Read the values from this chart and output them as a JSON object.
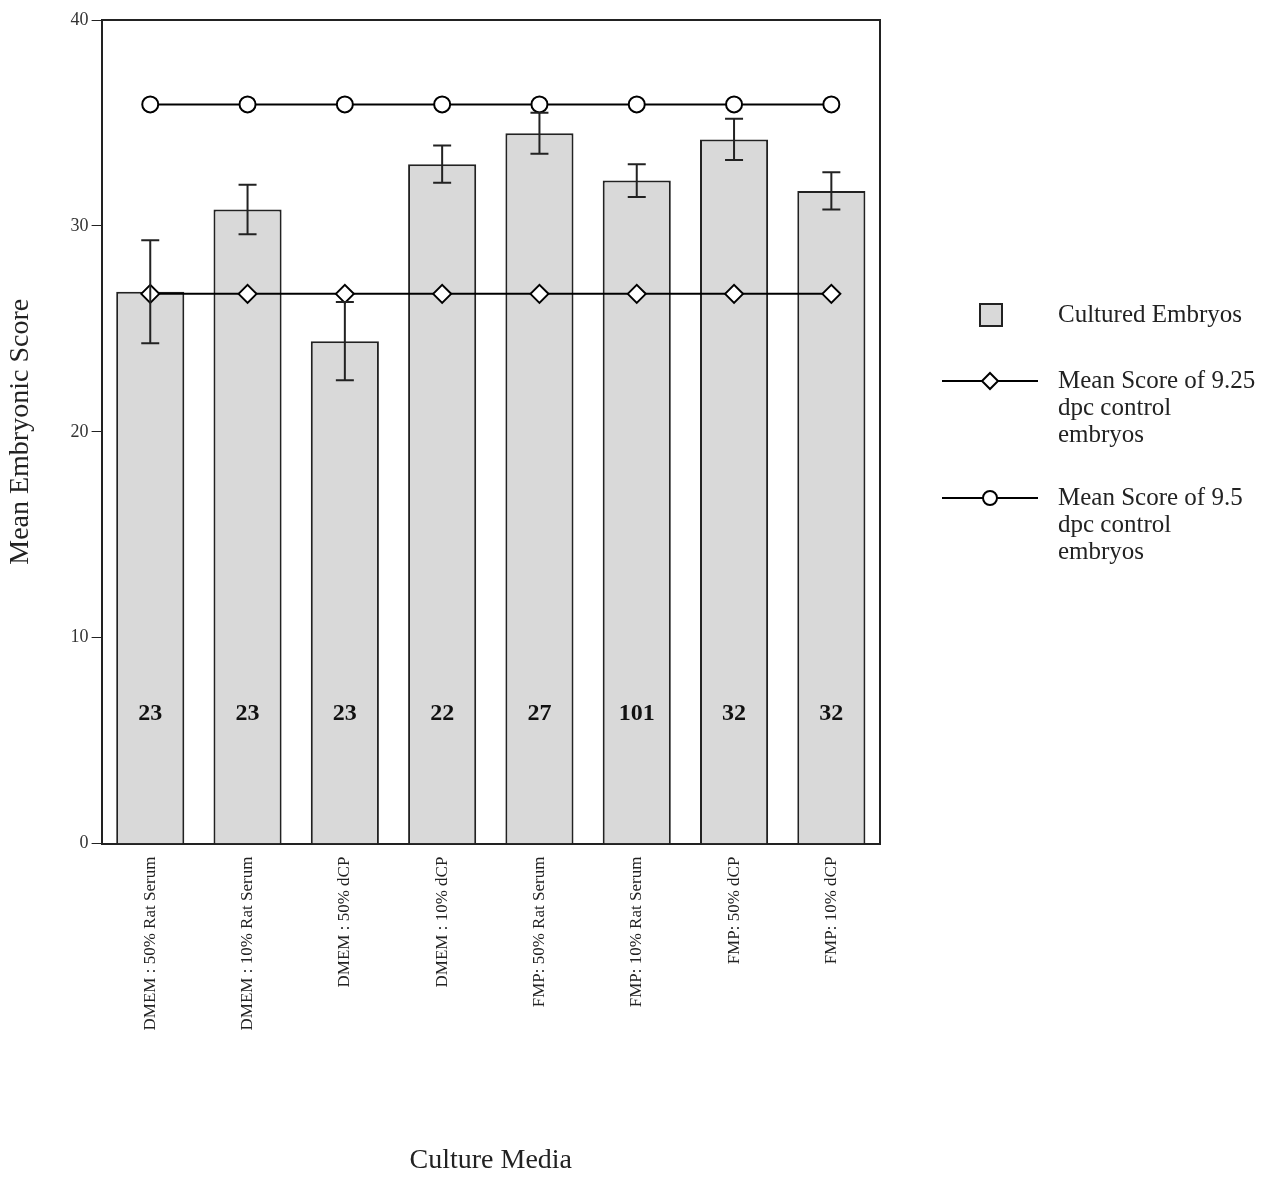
{
  "chart_data": {
    "type": "bar",
    "xlabel": "Culture Media",
    "ylabel": "Mean Embryonic Score",
    "categories": [
      "DMEM : 50% Rat Serum",
      "DMEM : 10% Rat Serum",
      "DMEM : 50% dCP",
      "DMEM : 10% dCP",
      "FMP: 50% Rat Serum",
      "FMP: 10% Rat Serum",
      "FMP: 50% dCP",
      "FMP: 10% dCP"
    ],
    "series": [
      {
        "name": "Cultured Embryos",
        "color": "#d9d9d9",
        "values": [
          26.8,
          30.8,
          24.4,
          33.0,
          34.5,
          32.2,
          34.2,
          31.7
        ],
        "errors": [
          2.5,
          1.2,
          1.9,
          0.9,
          1.0,
          0.8,
          1.0,
          0.9
        ]
      },
      {
        "name": "Mean Score of 9.25 dpc control embryos",
        "type": "line",
        "marker": "diamond",
        "color": "#000000",
        "values": [
          26.7,
          26.7,
          26.7,
          26.7,
          26.7,
          26.7,
          26.7,
          26.7
        ]
      },
      {
        "name": "Mean Score of 9.5 dpc control embryos",
        "type": "line",
        "marker": "circle",
        "color": "#000000",
        "values": [
          35.9,
          35.9,
          35.9,
          35.9,
          35.9,
          35.9,
          35.9,
          35.9
        ]
      }
    ],
    "ylim": [
      0,
      40
    ],
    "yticks": [
      0,
      10,
      20,
      30,
      40
    ],
    "grid": false,
    "legend": "right",
    "annotations": [
      "23",
      "23",
      "23",
      "22",
      "27",
      "101",
      "32",
      "32"
    ]
  }
}
